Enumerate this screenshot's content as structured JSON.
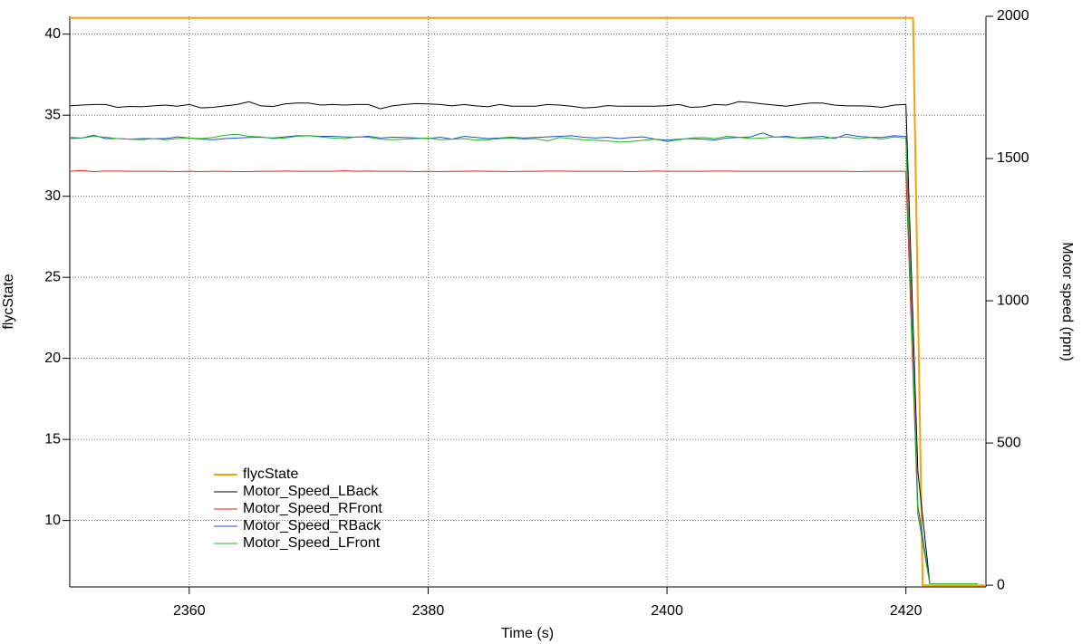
{
  "chart_data": {
    "type": "line",
    "xlabel": "Time (s)",
    "ylabel": "flycState",
    "y2label": "Motor speed (rpm)",
    "xlim": [
      2350,
      2426.7
    ],
    "xticks": [
      2360,
      2380,
      2400,
      2420
    ],
    "ylim": [
      5.9,
      41.1
    ],
    "yticks": [
      10,
      15,
      20,
      25,
      30,
      35,
      40
    ],
    "y2lim": [
      -6,
      2000
    ],
    "y2ticks": [
      0,
      500,
      1000,
      1500,
      2000
    ],
    "grid": true,
    "legend": "lower left",
    "series": [
      {
        "name": "flycState",
        "color": "#f0a20a",
        "x": [
          2350,
          2420.6,
          2421.4,
          2426.7
        ],
        "values": [
          41,
          41,
          6,
          6
        ]
      },
      {
        "name": "Motor_Speed_LBack",
        "color": "#000000",
        "axis": "y2",
        "x": [
          2350,
          2351,
          2352,
          2353,
          2354,
          2355,
          2356,
          2357,
          2358,
          2359,
          2360,
          2361,
          2362,
          2363,
          2364,
          2365,
          2366,
          2367,
          2368,
          2369,
          2370,
          2371,
          2372,
          2373,
          2374,
          2375,
          2376,
          2377,
          2378,
          2379,
          2380,
          2381,
          2382,
          2383,
          2384,
          2385,
          2386,
          2387,
          2388,
          2389,
          2390,
          2391,
          2392,
          2393,
          2394,
          2395,
          2396,
          2397,
          2398,
          2399,
          2400,
          2401,
          2402,
          2403,
          2404,
          2405,
          2406,
          2407,
          2408,
          2409,
          2410,
          2411,
          2412,
          2413,
          2414,
          2415,
          2416,
          2417,
          2418,
          2419,
          2420,
          2421,
          2422,
          2423,
          2424,
          2425,
          2426
        ],
        "values": [
          1685,
          1688,
          1690,
          1690,
          1680,
          1683,
          1682,
          1685,
          1688,
          1684,
          1690,
          1678,
          1680,
          1685,
          1690,
          1700,
          1685,
          1683,
          1692,
          1695,
          1695,
          1688,
          1690,
          1688,
          1690,
          1690,
          1675,
          1685,
          1690,
          1693,
          1692,
          1690,
          1685,
          1690,
          1685,
          1682,
          1690,
          1684,
          1684,
          1684,
          1690,
          1688,
          1684,
          1678,
          1680,
          1686,
          1684,
          1684,
          1684,
          1684,
          1686,
          1690,
          1680,
          1682,
          1690,
          1688,
          1700,
          1697,
          1692,
          1688,
          1684,
          1690,
          1695,
          1695,
          1688,
          1685,
          1685,
          1684,
          1680,
          1688,
          1690,
          400,
          5,
          5,
          5,
          5,
          5
        ]
      },
      {
        "name": "Motor_Speed_RFront",
        "color": "#e0201b",
        "axis": "y2",
        "x": [
          2350,
          2351,
          2352,
          2353,
          2354,
          2355,
          2356,
          2357,
          2358,
          2359,
          2360,
          2361,
          2362,
          2363,
          2364,
          2365,
          2366,
          2367,
          2368,
          2369,
          2370,
          2371,
          2372,
          2373,
          2374,
          2375,
          2376,
          2377,
          2378,
          2379,
          2380,
          2381,
          2382,
          2383,
          2384,
          2385,
          2386,
          2387,
          2388,
          2389,
          2390,
          2391,
          2392,
          2393,
          2394,
          2395,
          2396,
          2397,
          2398,
          2399,
          2400,
          2401,
          2402,
          2403,
          2404,
          2405,
          2406,
          2407,
          2408,
          2409,
          2410,
          2411,
          2412,
          2413,
          2414,
          2415,
          2416,
          2417,
          2418,
          2419,
          2420,
          2421,
          2422,
          2423,
          2424,
          2425,
          2426
        ],
        "values": [
          1455,
          1458,
          1454,
          1456,
          1456,
          1455,
          1455,
          1455,
          1455,
          1454,
          1455,
          1454,
          1455,
          1455,
          1454,
          1454,
          1455,
          1455,
          1456,
          1455,
          1455,
          1455,
          1455,
          1457,
          1455,
          1456,
          1455,
          1455,
          1455,
          1454,
          1455,
          1454,
          1455,
          1455,
          1456,
          1455,
          1455,
          1454,
          1455,
          1455,
          1456,
          1456,
          1455,
          1455,
          1455,
          1455,
          1455,
          1454,
          1455,
          1456,
          1455,
          1455,
          1455,
          1455,
          1456,
          1456,
          1455,
          1455,
          1455,
          1455,
          1455,
          1455,
          1455,
          1455,
          1455,
          1455,
          1454,
          1455,
          1455,
          1455,
          1455,
          250,
          5,
          5,
          5,
          5,
          5
        ]
      },
      {
        "name": "Motor_Speed_RBack",
        "color": "#1f4fd0",
        "axis": "y2",
        "x": [
          2350,
          2351,
          2352,
          2353,
          2354,
          2355,
          2356,
          2357,
          2358,
          2359,
          2360,
          2361,
          2362,
          2363,
          2364,
          2365,
          2366,
          2367,
          2368,
          2369,
          2370,
          2371,
          2372,
          2373,
          2374,
          2375,
          2376,
          2377,
          2378,
          2379,
          2380,
          2381,
          2382,
          2383,
          2384,
          2385,
          2386,
          2387,
          2388,
          2389,
          2390,
          2391,
          2392,
          2393,
          2394,
          2395,
          2396,
          2397,
          2398,
          2399,
          2400,
          2401,
          2402,
          2403,
          2404,
          2405,
          2406,
          2407,
          2408,
          2409,
          2410,
          2411,
          2412,
          2413,
          2414,
          2415,
          2416,
          2417,
          2418,
          2419,
          2420,
          2421,
          2422,
          2423,
          2424,
          2425,
          2426
        ],
        "values": [
          1570,
          1572,
          1582,
          1570,
          1570,
          1568,
          1570,
          1570,
          1570,
          1576,
          1572,
          1568,
          1566,
          1570,
          1572,
          1574,
          1575,
          1572,
          1576,
          1580,
          1580,
          1578,
          1578,
          1576,
          1575,
          1578,
          1572,
          1575,
          1574,
          1572,
          1570,
          1575,
          1568,
          1578,
          1574,
          1570,
          1572,
          1575,
          1572,
          1574,
          1576,
          1578,
          1580,
          1575,
          1572,
          1575,
          1570,
          1574,
          1576,
          1568,
          1564,
          1568,
          1570,
          1568,
          1565,
          1572,
          1574,
          1576,
          1590,
          1575,
          1578,
          1572,
          1575,
          1578,
          1570,
          1585,
          1578,
          1575,
          1574,
          1580,
          1578,
          280,
          5,
          5,
          5,
          5,
          5
        ]
      },
      {
        "name": "Motor_Speed_LFront",
        "color": "#22b522",
        "axis": "y2",
        "x": [
          2350,
          2351,
          2352,
          2353,
          2354,
          2355,
          2356,
          2357,
          2358,
          2359,
          2360,
          2361,
          2362,
          2363,
          2364,
          2365,
          2366,
          2367,
          2368,
          2369,
          2370,
          2371,
          2372,
          2373,
          2374,
          2375,
          2376,
          2377,
          2378,
          2379,
          2380,
          2381,
          2382,
          2383,
          2384,
          2385,
          2386,
          2387,
          2388,
          2389,
          2390,
          2391,
          2392,
          2393,
          2394,
          2395,
          2396,
          2397,
          2398,
          2399,
          2400,
          2401,
          2402,
          2403,
          2404,
          2405,
          2406,
          2407,
          2408,
          2409,
          2410,
          2411,
          2412,
          2413,
          2414,
          2415,
          2416,
          2417,
          2418,
          2419,
          2420,
          2421,
          2422,
          2423,
          2424,
          2425,
          2426
        ],
        "values": [
          1575,
          1572,
          1578,
          1575,
          1570,
          1568,
          1566,
          1570,
          1566,
          1570,
          1572,
          1570,
          1574,
          1582,
          1585,
          1578,
          1576,
          1570,
          1572,
          1578,
          1580,
          1576,
          1572,
          1570,
          1576,
          1575,
          1568,
          1566,
          1568,
          1570,
          1572,
          1566,
          1568,
          1570,
          1565,
          1566,
          1570,
          1572,
          1568,
          1570,
          1562,
          1574,
          1570,
          1566,
          1564,
          1562,
          1558,
          1560,
          1564,
          1568,
          1560,
          1566,
          1572,
          1574,
          1570,
          1578,
          1575,
          1570,
          1572,
          1576,
          1574,
          1572,
          1570,
          1570,
          1574,
          1576,
          1570,
          1574,
          1568,
          1576,
          1572,
          250,
          5,
          5,
          5,
          5,
          5
        ]
      }
    ]
  }
}
